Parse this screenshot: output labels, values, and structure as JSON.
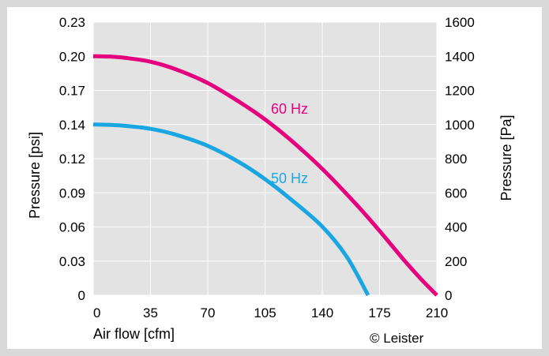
{
  "chart_data": {
    "type": "line",
    "xlabel": "Air flow [cfm]",
    "ylabel_left": "Pressure [psi]",
    "ylabel_right": "Pressure [Pa]",
    "xlim": [
      0,
      210
    ],
    "ylim_left": [
      0,
      0.23
    ],
    "ylim_right": [
      0,
      1600
    ],
    "x_ticks": [
      "0",
      "35",
      "70",
      "105",
      "140",
      "175",
      "210"
    ],
    "y_ticks_left": [
      "0.23",
      "0.20",
      "0.17",
      "0.14",
      "0.12",
      "0.09",
      "0.06",
      "0.03",
      "0"
    ],
    "y_ticks_right": [
      "1600",
      "1400",
      "1200",
      "1000",
      "800",
      "600",
      "400",
      "200",
      "0"
    ],
    "grid": true,
    "series": [
      {
        "name": "60 Hz",
        "color": "#e5007e",
        "x": [
          0,
          10,
          20,
          35,
          50,
          70,
          90,
          105,
          120,
          140,
          160,
          175,
          190,
          200,
          210
        ],
        "y": [
          1400,
          1398,
          1390,
          1368,
          1325,
          1243,
          1128,
          1030,
          915,
          740,
          540,
          377,
          205,
          98,
          0
        ]
      },
      {
        "name": "50 Hz",
        "color": "#1aa7e1",
        "x": [
          0,
          10,
          20,
          35,
          50,
          70,
          90,
          105,
          120,
          140,
          155,
          168
        ],
        "y": [
          1000,
          998,
          992,
          975,
          942,
          875,
          775,
          680,
          568,
          402,
          225,
          0
        ]
      }
    ]
  },
  "credit": "© Leister"
}
